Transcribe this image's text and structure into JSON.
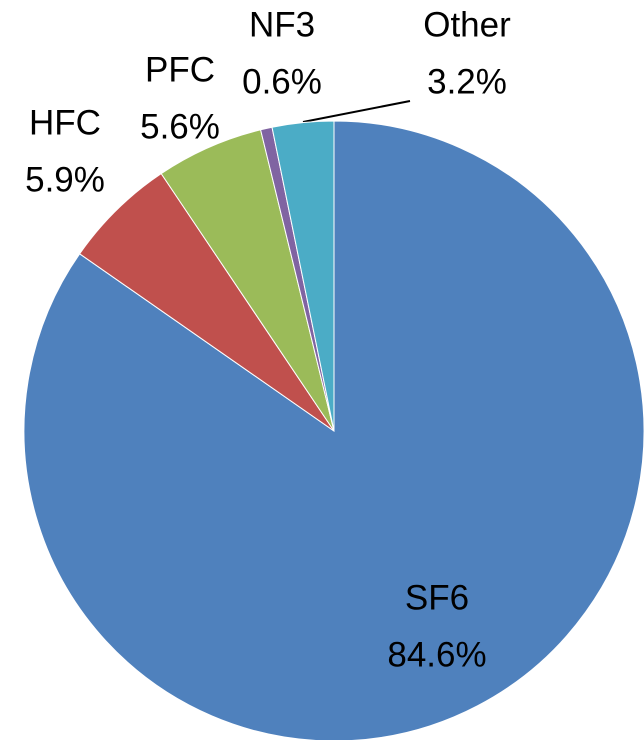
{
  "chart_data": {
    "type": "pie",
    "categories": [
      "SF6",
      "HFC",
      "PFC",
      "NF3",
      "Other"
    ],
    "values": [
      84.6,
      5.9,
      5.6,
      0.6,
      3.2
    ],
    "value_labels": [
      "84.6%",
      "5.9%",
      "5.6%",
      "0.6%",
      "3.2%"
    ],
    "colors": [
      "#4f81bd",
      "#c0504d",
      "#9bbb59",
      "#8064a2",
      "#4bacc6"
    ]
  }
}
